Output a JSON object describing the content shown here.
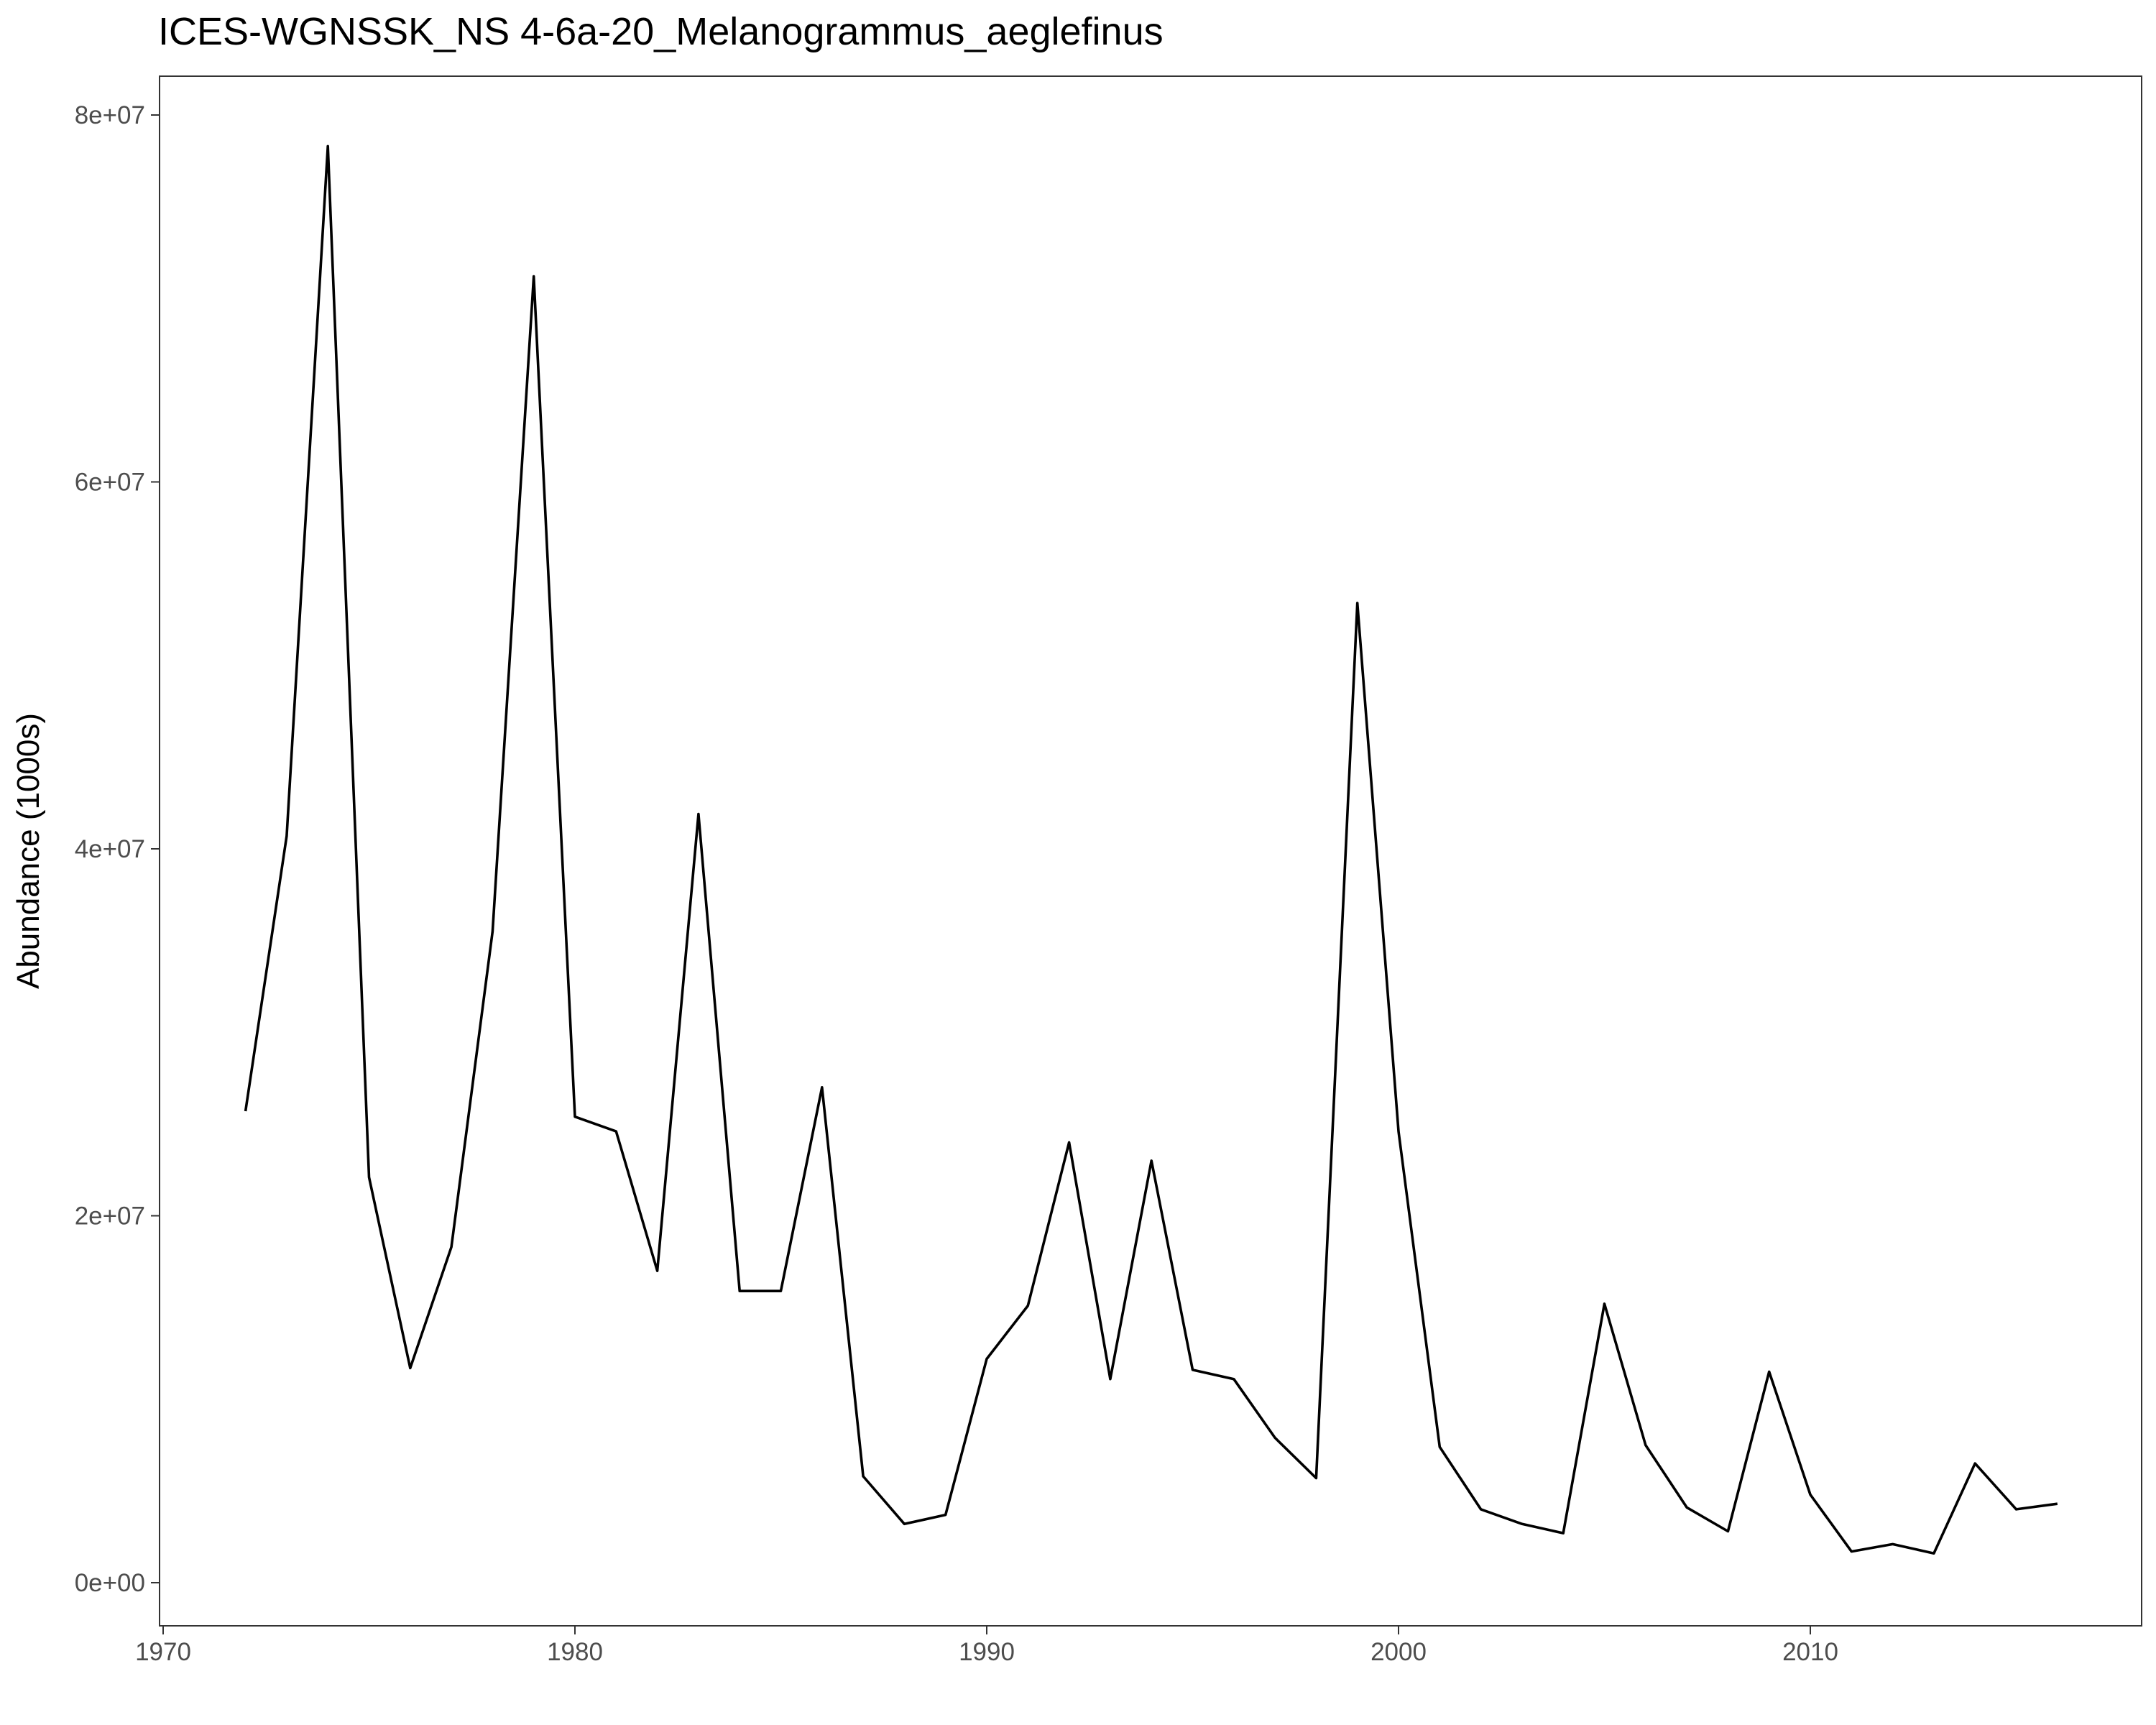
{
  "chart_data": {
    "type": "line",
    "title": "ICES-WGNSSK_NS  4-6a-20_Melanogrammus_aeglefinus",
    "xlabel": "",
    "ylabel": "Abundance (1000s)",
    "x": [
      1972,
      1973,
      1974,
      1975,
      1976,
      1977,
      1978,
      1979,
      1980,
      1981,
      1982,
      1983,
      1984,
      1985,
      1986,
      1987,
      1988,
      1989,
      1990,
      1991,
      1992,
      1993,
      1994,
      1995,
      1996,
      1997,
      1998,
      1999,
      2000,
      2001,
      2002,
      2003,
      2004,
      2005,
      2006,
      2007,
      2008,
      2009,
      2010,
      2011,
      2012,
      2013,
      2014,
      2015,
      2016
    ],
    "series": [
      {
        "values": [
          25700000,
          40700000,
          78300000,
          22100000,
          11700000,
          18300000,
          35500000,
          71200000,
          25400000,
          24600000,
          17000000,
          41900000,
          15900000,
          15900000,
          27000000,
          5800000,
          3200000,
          3700000,
          12200000,
          15100000,
          24000000,
          11100000,
          23000000,
          11600000,
          11100000,
          7900000,
          5700000,
          53400000,
          24600000,
          7400000,
          4000000,
          3200000,
          2700000,
          15200000,
          7500000,
          4100000,
          2800000,
          11500000,
          4800000,
          1700000,
          2100000,
          1600000,
          6500000,
          4000000,
          4300000
        ]
      }
    ],
    "xlim": [
      1970,
      2018
    ],
    "ylim": [
      -2400000,
      80000000
    ],
    "x_ticks": [
      1970,
      1980,
      1990,
      2000,
      2010
    ],
    "y_ticks": [
      0,
      20000000,
      40000000,
      60000000,
      80000000
    ],
    "x_tick_labels": [
      "1970",
      "1980",
      "1990",
      "2000",
      "2010"
    ],
    "y_tick_labels": [
      "0e+00",
      "2e+07",
      "4e+07",
      "6e+07",
      "8e+07"
    ],
    "grid": false,
    "legend": "none",
    "colors": {
      "line": "#000000",
      "frame": "#333333",
      "tick_label": "#4d4d4d"
    }
  }
}
